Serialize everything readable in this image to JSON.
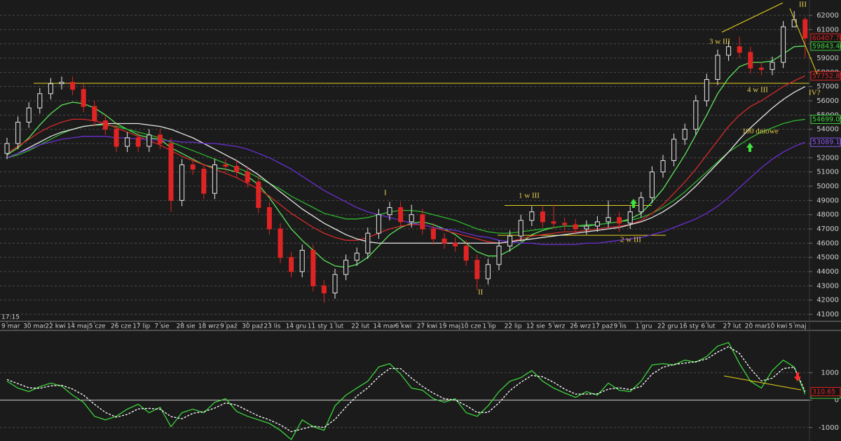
{
  "chart_data": [
    {
      "type": "candlestick",
      "categories": [
        "9 mar",
        null,
        "30 mar",
        null,
        "22 kwi",
        null,
        "14 maj",
        null,
        "5 cze",
        null,
        "26 cze",
        null,
        "17 lip",
        null,
        "7 sie",
        null,
        "28 sie",
        null,
        "18 wrz",
        null,
        "9 paź",
        null,
        "30 paź",
        null,
        "23 lis",
        null,
        "14 gru",
        null,
        "11 sty",
        null,
        "1 lut",
        null,
        "22 lut",
        null,
        "14 mar",
        null,
        "6 kwi",
        null,
        "27 kwi",
        null,
        "19 maj",
        null,
        "10 cze",
        null,
        "1 lip",
        null,
        "22 lip",
        null,
        "12 sie",
        null,
        "5 wrz",
        null,
        "26 wrz",
        null,
        "17 paź",
        null,
        "9 lis",
        null,
        "1 gru",
        null,
        "22 gru",
        null,
        "16 sty",
        null,
        "6 lut",
        null,
        "27 lut",
        null,
        "20 mar",
        null,
        "10 kwi",
        null,
        "5 maj",
        null
      ],
      "open": [
        52300,
        53000,
        54500,
        55500,
        56500,
        57200,
        57300,
        56800,
        55600,
        54600,
        54000,
        52800,
        53400,
        52800,
        53600,
        53000,
        49000,
        51500,
        51200,
        49500,
        51500,
        51400,
        51000,
        50300,
        48500,
        47000,
        45000,
        44000,
        45500,
        43000,
        42500,
        43800,
        44800,
        45300,
        46700,
        48000,
        48500,
        47500,
        48000,
        47000,
        46300,
        46000,
        45800,
        44800,
        43500,
        44500,
        45800,
        46500,
        47600,
        48200,
        47500,
        47400,
        47300,
        47000,
        47200,
        47500,
        47800,
        47400,
        48200,
        49200,
        51000,
        51800,
        53300,
        54000,
        56000,
        57500,
        59200,
        59800,
        59400,
        58300,
        58200,
        58700,
        61200,
        61700
      ],
      "high": [
        53400,
        54900,
        55900,
        56900,
        57600,
        57700,
        57700,
        57200,
        56000,
        55000,
        54400,
        53800,
        53800,
        54000,
        54000,
        53400,
        51900,
        51900,
        51600,
        51900,
        51900,
        51800,
        51400,
        50700,
        48900,
        47400,
        45400,
        45900,
        45900,
        43400,
        44200,
        45200,
        45700,
        47100,
        48400,
        48900,
        48900,
        48700,
        48400,
        47400,
        46700,
        46400,
        46200,
        45200,
        44900,
        46200,
        46900,
        48000,
        48600,
        48600,
        48700,
        47800,
        47700,
        47600,
        47900,
        49000,
        48200,
        48600,
        49600,
        51400,
        52200,
        53700,
        54400,
        56400,
        57900,
        59600,
        60200,
        60500,
        59800,
        58700,
        59100,
        61600,
        62300,
        61900
      ],
      "low": [
        51900,
        52600,
        54100,
        55100,
        56100,
        56800,
        56400,
        55200,
        54200,
        53600,
        52400,
        52400,
        52400,
        52400,
        52600,
        48200,
        48600,
        50800,
        49100,
        49100,
        51000,
        50600,
        49900,
        48100,
        46600,
        44600,
        43600,
        43600,
        42600,
        41800,
        42100,
        43400,
        44400,
        44900,
        46300,
        47600,
        47100,
        47100,
        46600,
        45900,
        45600,
        45400,
        44400,
        42700,
        43100,
        44100,
        45400,
        46100,
        47200,
        47100,
        47000,
        46900,
        46600,
        46600,
        46800,
        47100,
        46800,
        47000,
        47800,
        48800,
        50600,
        51400,
        52900,
        53600,
        55600,
        57100,
        58800,
        59000,
        57900,
        57800,
        57800,
        58300,
        61200,
        59000
      ],
      "close": [
        53000,
        54500,
        55500,
        56500,
        57200,
        57300,
        56800,
        55600,
        54600,
        54000,
        52800,
        53400,
        52800,
        53600,
        53000,
        49000,
        51500,
        51200,
        49500,
        51500,
        51400,
        51000,
        50300,
        48500,
        47000,
        45000,
        44000,
        45500,
        43000,
        42500,
        43800,
        44800,
        45300,
        46700,
        48000,
        48500,
        47500,
        48000,
        47000,
        46300,
        46000,
        45800,
        44800,
        43500,
        44500,
        45800,
        46500,
        47600,
        48200,
        47500,
        47400,
        47300,
        47000,
        47200,
        47500,
        47800,
        47400,
        48200,
        49200,
        51000,
        51800,
        53300,
        54000,
        56000,
        57500,
        59200,
        59800,
        59400,
        58300,
        58200,
        58700,
        61200,
        61700,
        60407.78
      ],
      "up_color": "#e8e8e8",
      "down_color": "#e02424",
      "ylim": [
        40560,
        63080
      ],
      "yticks": [
        41000,
        42000,
        43000,
        44000,
        45000,
        46000,
        47000,
        48000,
        49000,
        50000,
        51000,
        52000,
        53000,
        54000,
        55000,
        56000,
        57000,
        58000,
        59000,
        60000,
        61000,
        62000
      ],
      "grid": true,
      "series": [
        {
          "color": "#5ce65c",
          "label_color": "#3fd23f",
          "values": [
            52200,
            52700,
            53400,
            54300,
            55100,
            55700,
            55900,
            55800,
            55500,
            55000,
            54400,
            54000,
            53600,
            53400,
            53300,
            52700,
            52300,
            51900,
            51500,
            51300,
            51200,
            51000,
            50700,
            50100,
            49200,
            48100,
            47000,
            46200,
            45500,
            44800,
            44400,
            44300,
            44500,
            45000,
            45800,
            46600,
            47100,
            47400,
            47500,
            47300,
            47000,
            46600,
            46000,
            45400,
            45100,
            45100,
            45500,
            46000,
            46600,
            46900,
            47100,
            47200,
            47200,
            47200,
            47300,
            47400,
            47500,
            47700,
            48100,
            48900,
            49800,
            51000,
            52200,
            53600,
            55000,
            56500,
            57600,
            58400,
            58700,
            58700,
            58800,
            59300,
            59800,
            59843.46
          ]
        },
        {
          "color": "#2fb52f",
          "label_color": "#3fd23f",
          "values": [
            52000,
            52200,
            52500,
            52900,
            53300,
            53700,
            54000,
            54200,
            54300,
            54300,
            54200,
            54000,
            53800,
            53600,
            53400,
            53100,
            52800,
            52500,
            52200,
            51900,
            51600,
            51300,
            51000,
            50600,
            50200,
            49800,
            49300,
            48900,
            48500,
            48100,
            47900,
            47700,
            47700,
            47800,
            48000,
            48200,
            48300,
            48300,
            48200,
            48000,
            47800,
            47600,
            47300,
            47000,
            46800,
            46700,
            46700,
            46800,
            46900,
            47000,
            47100,
            47200,
            47200,
            47300,
            47300,
            47400,
            47500,
            47600,
            47800,
            48100,
            48500,
            49000,
            49600,
            50300,
            51000,
            51700,
            52400,
            52900,
            53400,
            53800,
            54100,
            54400,
            54600,
            54699.05
          ]
        },
        {
          "color": "#d42a2a",
          "label_color": "#e02424",
          "values": [
            52300,
            52800,
            53300,
            53800,
            54200,
            54500,
            54700,
            54700,
            54600,
            54400,
            54100,
            53800,
            53500,
            53200,
            52900,
            52500,
            52100,
            51800,
            51500,
            51200,
            50900,
            50600,
            50200,
            49800,
            49300,
            48700,
            48100,
            47600,
            47100,
            46700,
            46400,
            46200,
            46200,
            46400,
            46700,
            47000,
            47200,
            47300,
            47300,
            47100,
            46900,
            46700,
            46500,
            46300,
            46100,
            46000,
            46100,
            46300,
            46500,
            46600,
            46700,
            46800,
            46800,
            46900,
            47000,
            47100,
            47200,
            47300,
            47600,
            48100,
            48700,
            49500,
            50300,
            51200,
            52200,
            53200,
            54200,
            55000,
            55600,
            56000,
            56500,
            57000,
            57400,
            57752.85
          ]
        },
        {
          "color": "#e6e6e6",
          "values": [
            52000,
            52300,
            52700,
            53100,
            53500,
            53800,
            54000,
            54200,
            54300,
            54400,
            54400,
            54400,
            54400,
            54300,
            54200,
            54000,
            53700,
            53400,
            53000,
            52600,
            52200,
            51800,
            51300,
            50800,
            50200,
            49600,
            49000,
            48400,
            47900,
            47400,
            47000,
            46600,
            46300,
            46100,
            46000,
            46000,
            46000,
            46000,
            46000,
            46000,
            46000,
            46000,
            46000,
            46000,
            46000,
            46000,
            46100,
            46200,
            46300,
            46400,
            46500,
            46600,
            46700,
            46800,
            46900,
            47000,
            47100,
            47300,
            47500,
            47800,
            48200,
            48700,
            49300,
            50000,
            50800,
            51600,
            52400,
            53300,
            54100,
            54800,
            55500,
            56100,
            56600,
            57000
          ]
        },
        {
          "color": "#6a2fd0",
          "label_color": "#8a5cf0",
          "values": [
            52000,
            52300,
            52600,
            52900,
            53100,
            53300,
            53400,
            53500,
            53500,
            53500,
            53400,
            53400,
            53300,
            53300,
            53200,
            53200,
            53100,
            53100,
            53000,
            53000,
            52900,
            52800,
            52600,
            52300,
            52000,
            51600,
            51200,
            50700,
            50200,
            49700,
            49300,
            48900,
            48500,
            48200,
            48000,
            47800,
            47600,
            47400,
            47300,
            47100,
            47000,
            46900,
            46700,
            46500,
            46400,
            46200,
            46100,
            46000,
            46000,
            45900,
            45900,
            45900,
            45900,
            46000,
            46000,
            46100,
            46200,
            46300,
            46400,
            46600,
            46800,
            47100,
            47400,
            47700,
            48100,
            48600,
            49200,
            49900,
            50600,
            51300,
            51900,
            52400,
            52800,
            53089.18
          ]
        }
      ],
      "levels": [
        57230,
        48650,
        46550
      ],
      "level_color": "#e6d21e",
      "annotations": [
        "III",
        "3 w III",
        "IV?",
        "4 w III",
        "100 dniowe",
        "I",
        "1 w III",
        "2 w III",
        "II"
      ]
    },
    {
      "type": "line",
      "ylim": [
        -1490,
        2490
      ],
      "yticks": [
        1000,
        0,
        -1000
      ],
      "grid": true,
      "zero_line": true,
      "series": [
        {
          "color": "#3cd23c",
          "label_color": "#3fd23f",
          "values": [
            690,
            440,
            310,
            490,
            620,
            510,
            180,
            -80,
            -590,
            -720,
            -590,
            -330,
            -150,
            -460,
            -260,
            -970,
            -460,
            -330,
            -460,
            -80,
            50,
            -410,
            -590,
            -720,
            -850,
            -1100,
            -1440,
            -720,
            -970,
            -1100,
            -210,
            180,
            440,
            690,
            1210,
            1330,
            950,
            440,
            360,
            50,
            -80,
            50,
            -460,
            -590,
            -210,
            310,
            690,
            820,
            1080,
            690,
            440,
            260,
            100,
            310,
            180,
            620,
            360,
            310,
            690,
            1280,
            1330,
            1280,
            1460,
            1380,
            1590,
            1970,
            2100,
            1330,
            690,
            440,
            1080,
            1460,
            1210,
            217.75
          ]
        },
        {
          "color": "#ffffff",
          "dashed": true,
          "label_color": "#e02424",
          "values": [
            750,
            600,
            450,
            430,
            520,
            540,
            400,
            180,
            -150,
            -450,
            -620,
            -520,
            -320,
            -300,
            -330,
            -600,
            -680,
            -480,
            -420,
            -290,
            -100,
            -180,
            -380,
            -580,
            -720,
            -900,
            -1150,
            -1050,
            -950,
            -1000,
            -700,
            -250,
            150,
            450,
            850,
            1150,
            1150,
            800,
            500,
            250,
            50,
            0,
            -200,
            -450,
            -450,
            -100,
            350,
            650,
            900,
            850,
            650,
            400,
            220,
            220,
            230,
            400,
            450,
            380,
            500,
            950,
            1200,
            1300,
            1350,
            1400,
            1500,
            1750,
            1950,
            1700,
            1150,
            700,
            800,
            1150,
            1200,
            310.65
          ]
        }
      ]
    }
  ],
  "clock": "17:15"
}
